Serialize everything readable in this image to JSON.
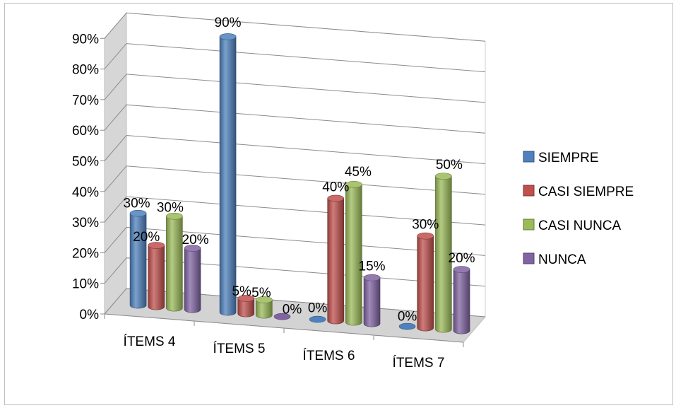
{
  "chart_data": {
    "type": "bar",
    "categories": [
      "ÍTEMS 4",
      "ÍTEMS 5",
      "ÍTEMS 6",
      "ÍTEMS 7"
    ],
    "series": [
      {
        "name": "SIEMPRE",
        "color": "#4F81BD",
        "values": [
          30,
          90,
          0,
          0
        ]
      },
      {
        "name": "CASI SIEMPRE",
        "color": "#C0504D",
        "values": [
          20,
          5,
          40,
          30
        ]
      },
      {
        "name": "CASI NUNCA",
        "color": "#9BBB59",
        "values": [
          30,
          5,
          45,
          50
        ]
      },
      {
        "name": "NUNCA",
        "color": "#8064A2",
        "values": [
          20,
          0,
          15,
          20
        ]
      }
    ],
    "y_ticks": [
      "0%",
      "10%",
      "20%",
      "30%",
      "40%",
      "50%",
      "60%",
      "70%",
      "80%",
      "90%"
    ],
    "ylim": [
      0,
      90
    ],
    "data_labels": [
      [
        "30%",
        "90%",
        "0%",
        "0%"
      ],
      [
        "20%",
        "5%",
        "40%",
        "30%"
      ],
      [
        "30%",
        "5%",
        "45%",
        "50%"
      ],
      [
        "20%",
        "0%",
        "15%",
        "20%"
      ]
    ],
    "grid": true,
    "legend_position": "right",
    "style": "3d-cylinder"
  }
}
